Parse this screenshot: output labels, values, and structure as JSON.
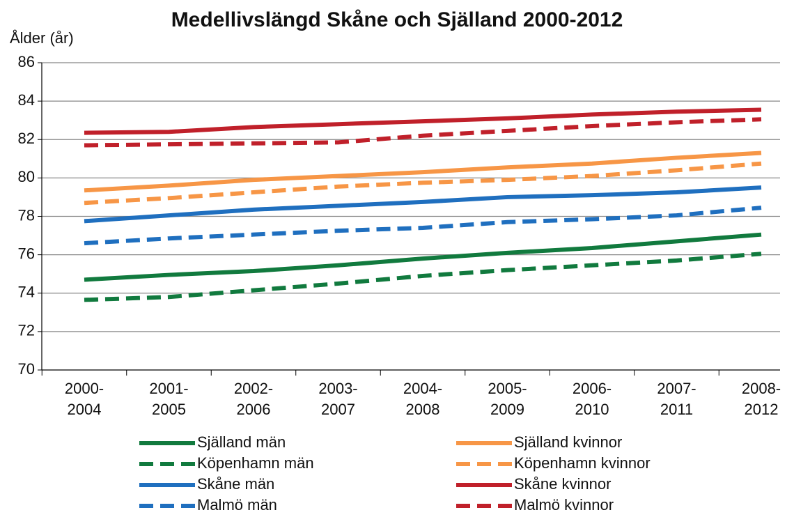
{
  "chart_data": {
    "type": "line",
    "title": "Medellivslängd Skåne och Själland 2000-2012",
    "y_label": "Ålder (år)",
    "categories": [
      "2000-2004",
      "2001-2005",
      "2002-2006",
      "2003-2007",
      "2004-2008",
      "2005-2009",
      "2006-2010",
      "2007-2011",
      "2008-2012"
    ],
    "ylim": [
      70,
      86
    ],
    "yticks": [
      70,
      72,
      74,
      76,
      78,
      80,
      82,
      84,
      86
    ],
    "grid": true,
    "series": [
      {
        "name": "Själland män",
        "color": "#117a3e",
        "dashed": false,
        "values": [
          74.7,
          74.95,
          75.15,
          75.45,
          75.8,
          76.1,
          76.35,
          76.7,
          77.05
        ]
      },
      {
        "name": "Köpenhamn män",
        "color": "#117a3e",
        "dashed": true,
        "values": [
          73.65,
          73.8,
          74.15,
          74.5,
          74.9,
          75.2,
          75.45,
          75.7,
          76.05
        ]
      },
      {
        "name": "Skåne män",
        "color": "#1f6fbf",
        "dashed": false,
        "values": [
          77.75,
          78.05,
          78.35,
          78.55,
          78.75,
          79.0,
          79.1,
          79.25,
          79.5
        ]
      },
      {
        "name": "Malmö män",
        "color": "#1f6fbf",
        "dashed": true,
        "values": [
          76.6,
          76.85,
          77.05,
          77.25,
          77.4,
          77.7,
          77.85,
          78.05,
          78.45
        ]
      },
      {
        "name": "Själland kvinnor",
        "color": "#f79646",
        "dashed": false,
        "values": [
          79.35,
          79.6,
          79.9,
          80.1,
          80.3,
          80.55,
          80.75,
          81.05,
          81.3
        ]
      },
      {
        "name": "Köpenhamn kvinnor",
        "color": "#f79646",
        "dashed": true,
        "values": [
          78.7,
          78.95,
          79.25,
          79.55,
          79.75,
          79.9,
          80.1,
          80.4,
          80.75
        ]
      },
      {
        "name": "Skåne kvinnor",
        "color": "#c0202a",
        "dashed": false,
        "values": [
          82.35,
          82.4,
          82.65,
          82.8,
          82.95,
          83.1,
          83.3,
          83.45,
          83.55
        ]
      },
      {
        "name": "Malmö kvinnor",
        "color": "#c0202a",
        "dashed": true,
        "values": [
          81.7,
          81.75,
          81.8,
          81.85,
          82.2,
          82.45,
          82.7,
          82.9,
          83.05
        ]
      }
    ]
  }
}
